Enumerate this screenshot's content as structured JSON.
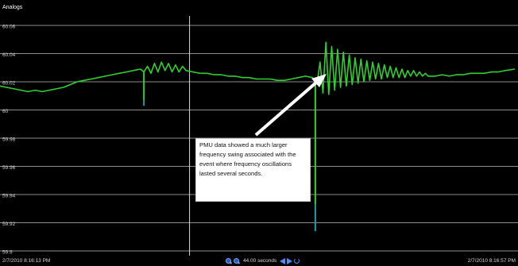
{
  "panel": {
    "title": "Analogs"
  },
  "chart_data": {
    "type": "line",
    "title": "",
    "xlabel": "",
    "ylabel": "",
    "x_start_label": "2/7/2010 8:16:13 PM",
    "x_end_label": "2/7/2010 8:16:57 PM",
    "window_seconds": 44,
    "xlim": [
      0,
      44
    ],
    "ylim": [
      59.9,
      60.06
    ],
    "yticks": [
      60.06,
      60.04,
      60.02,
      60,
      59.98,
      59.96,
      59.94,
      59.92,
      59.9
    ],
    "ytick_labels": [
      "60.06",
      "60.04",
      "60.02",
      "60",
      "59.98",
      "59.96",
      "59.94",
      "59.92",
      "59.9"
    ],
    "grid": true,
    "series": [
      {
        "color": "#2fd12f",
        "x": [
          0,
          0.6,
          1.2,
          1.8,
          2.4,
          3,
          3.6,
          4.2,
          4.8,
          5.4,
          6,
          6.6,
          7.2,
          7.8,
          8.4,
          9,
          9.6,
          10.2,
          10.8,
          11.4,
          12,
          12.3,
          12.6,
          12.9,
          13.2,
          13.5,
          13.8,
          14.1,
          14.4,
          14.7,
          15,
          15.3,
          15.6,
          15.9,
          16.5,
          17.1,
          17.7,
          18.3,
          18.9,
          19.5,
          20.1,
          20.7,
          21.3,
          21.9,
          22.5,
          23.1,
          23.7,
          24.3,
          24.9,
          25.5,
          26.1,
          26.7,
          27.1,
          27.35,
          27.6,
          27.85,
          28.1,
          28.35,
          28.6,
          28.85,
          29.1,
          29.35,
          29.6,
          29.85,
          30.1,
          30.35,
          30.6,
          30.85,
          31.1,
          31.35,
          31.6,
          31.85,
          32.1,
          32.35,
          32.6,
          32.85,
          33.1,
          33.35,
          33.6,
          33.85,
          34.1,
          34.35,
          34.6,
          34.85,
          35.1,
          35.35,
          35.6,
          35.85,
          36.1,
          36.35,
          36.6,
          37.2,
          37.8,
          38.4,
          39,
          39.6,
          40.2,
          40.8,
          41.4,
          42,
          42.6,
          43.2,
          44
        ],
        "y": [
          60.017,
          60.016,
          60.015,
          60.014,
          60.013,
          60.014,
          60.013,
          60.014,
          60.015,
          60.016,
          60.018,
          60.02,
          60.021,
          60.022,
          60.023,
          60.024,
          60.025,
          60.026,
          60.027,
          60.028,
          60.029,
          60.027,
          60.031,
          60.026,
          60.033,
          60.027,
          60.034,
          60.028,
          60.033,
          60.027,
          60.032,
          60.027,
          60.031,
          60.028,
          60.027,
          60.026,
          60.026,
          60.025,
          60.025,
          60.024,
          60.024,
          60.023,
          60.023,
          60.022,
          60.022,
          60.022,
          60.021,
          60.021,
          60.022,
          60.023,
          60.024,
          60.023,
          60.019,
          60.034,
          60.012,
          60.048,
          60.011,
          60.045,
          60.014,
          60.043,
          60.016,
          60.041,
          60.017,
          60.039,
          60.018,
          60.037,
          60.019,
          60.036,
          60.02,
          60.035,
          60.021,
          60.034,
          60.022,
          60.033,
          60.022,
          60.032,
          60.023,
          60.031,
          60.023,
          60.03,
          60.023,
          60.029,
          60.023,
          60.028,
          60.024,
          60.028,
          60.024,
          60.027,
          60.024,
          60.026,
          60.024,
          60.024,
          60.025,
          60.024,
          60.025,
          60.025,
          60.026,
          60.026,
          60.026,
          60.027,
          60.027,
          60.028,
          60.029
        ]
      }
    ],
    "dips": [
      {
        "x": 12.3,
        "min": 60.003
      },
      {
        "x": 26.95,
        "min": 59.914
      }
    ],
    "cursor_x": 16.2
  },
  "annotation": {
    "text": "PMU data showed a much larger frequency swing associated with the event where frequency oscillations lasted several seconds."
  },
  "footer": {
    "span_label": "44.00 seconds"
  },
  "icons": {
    "zoom_in": "zoom-in-icon",
    "zoom_out": "zoom-out-icon",
    "back": "arrow-left-icon",
    "forward": "arrow-right-icon",
    "refresh": "refresh-icon"
  }
}
